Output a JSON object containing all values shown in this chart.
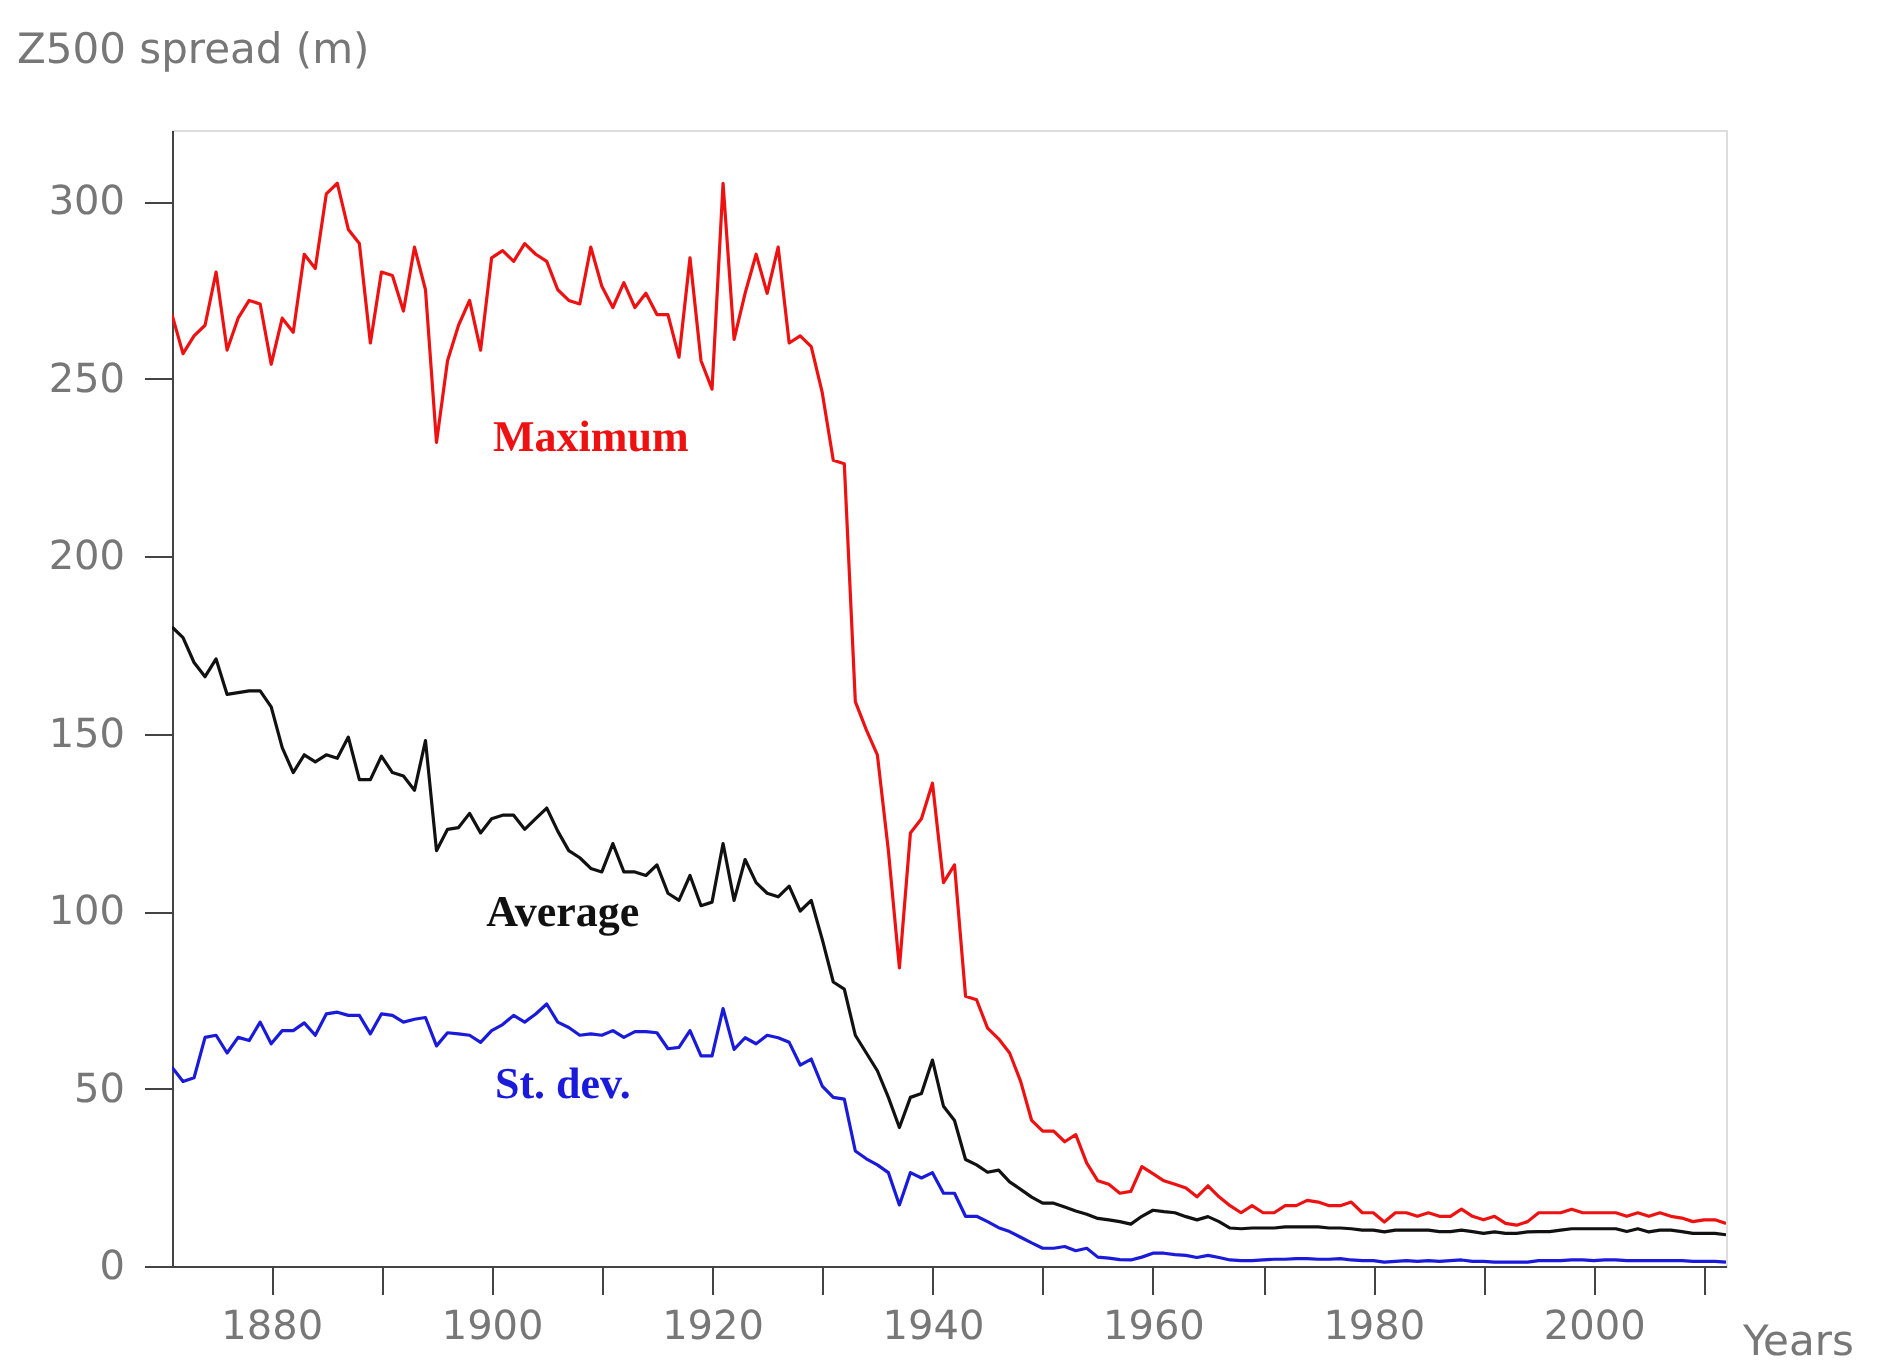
{
  "chart_data": {
    "type": "line",
    "ylabel": "Z500 spread (m)",
    "xlabel": "Years",
    "x": [
      1871,
      1872,
      1873,
      1874,
      1875,
      1876,
      1877,
      1878,
      1879,
      1880,
      1881,
      1882,
      1883,
      1884,
      1885,
      1886,
      1887,
      1888,
      1889,
      1890,
      1891,
      1892,
      1893,
      1894,
      1895,
      1896,
      1897,
      1898,
      1899,
      1900,
      1901,
      1902,
      1903,
      1904,
      1905,
      1906,
      1907,
      1908,
      1909,
      1910,
      1911,
      1912,
      1913,
      1914,
      1915,
      1916,
      1917,
      1918,
      1919,
      1920,
      1921,
      1922,
      1923,
      1924,
      1925,
      1926,
      1927,
      1928,
      1929,
      1930,
      1931,
      1932,
      1933,
      1934,
      1935,
      1936,
      1937,
      1938,
      1939,
      1940,
      1941,
      1942,
      1943,
      1944,
      1945,
      1946,
      1947,
      1948,
      1949,
      1950,
      1951,
      1952,
      1953,
      1954,
      1955,
      1956,
      1957,
      1958,
      1959,
      1960,
      1961,
      1962,
      1963,
      1964,
      1965,
      1966,
      1967,
      1968,
      1969,
      1970,
      1971,
      1972,
      1973,
      1974,
      1975,
      1976,
      1977,
      1978,
      1979,
      1980,
      1981,
      1982,
      1983,
      1984,
      1985,
      1986,
      1987,
      1988,
      1989,
      1990,
      1991,
      1992,
      1993,
      1994,
      1995,
      1996,
      1997,
      1998,
      1999,
      2000,
      2001,
      2002,
      2003,
      2004,
      2005,
      2006,
      2007,
      2008,
      2009,
      2010,
      2011,
      2012
    ],
    "series": [
      {
        "name": "Maximum",
        "color": "#ee1111",
        "values": [
          268,
          257,
          262,
          265,
          280,
          258,
          267,
          272,
          271,
          254,
          267,
          263,
          285,
          281,
          302,
          305,
          292,
          288,
          260,
          280,
          279,
          269,
          287,
          275,
          232,
          255,
          265,
          272,
          258,
          284,
          286,
          283,
          288,
          285,
          283,
          275,
          272,
          271,
          287,
          276,
          270,
          277,
          270,
          274,
          268,
          268,
          256,
          284,
          255,
          247,
          305,
          261,
          274,
          285,
          274,
          287,
          260,
          262,
          259,
          246,
          227,
          226,
          159,
          151,
          144,
          117,
          84,
          122,
          126,
          136,
          108,
          113,
          76,
          75,
          67,
          64,
          60,
          52,
          41,
          38,
          38,
          35,
          37,
          29,
          24,
          23,
          20.5,
          21,
          28,
          26,
          24,
          23,
          22,
          19.5,
          22.6,
          19.5,
          17,
          15,
          17,
          15,
          15,
          17,
          17,
          18.5,
          18,
          17,
          17,
          18,
          15,
          15,
          12.4,
          15,
          15,
          14,
          15,
          14,
          14,
          16,
          14,
          13,
          14,
          12,
          11.5,
          12.5,
          15,
          15,
          15,
          16,
          15,
          15,
          15,
          15,
          14,
          15,
          14,
          15,
          14,
          13.5,
          12.5,
          13,
          13,
          12
        ]
      },
      {
        "name": "Average",
        "color": "#111111",
        "values": [
          180,
          177,
          170,
          166,
          171,
          161,
          161.5,
          162,
          162,
          157.5,
          146,
          139,
          144,
          142,
          144,
          143,
          149,
          137,
          137,
          143.6,
          139,
          138,
          134,
          148,
          117,
          123,
          123.5,
          127.5,
          122,
          126,
          127,
          127,
          123,
          126,
          129,
          122.5,
          117,
          115,
          112,
          111,
          119,
          111,
          111,
          110,
          113,
          105,
          103,
          110,
          101.5,
          102.5,
          119,
          103,
          114.5,
          108,
          105,
          104,
          107,
          100,
          103,
          92,
          80,
          78,
          65,
          60,
          55,
          47.5,
          39,
          47.5,
          48.6,
          58,
          45,
          41,
          30,
          28.5,
          26.4,
          27,
          23.7,
          21.6,
          19.4,
          17.7,
          17.7,
          16.6,
          15.5,
          14.6,
          13.4,
          13,
          12.5,
          11.8,
          14,
          15.7,
          15.3,
          15,
          13.9,
          13,
          13.9,
          12.5,
          10.7,
          10.5,
          10.7,
          10.7,
          10.7,
          11,
          11,
          11,
          11,
          10.7,
          10.7,
          10.5,
          10.1,
          10.1,
          9.6,
          10.1,
          10.1,
          10.1,
          10.1,
          9.7,
          9.7,
          10.1,
          9.7,
          9.2,
          9.6,
          9.2,
          9.2,
          9.6,
          9.7,
          9.7,
          10.1,
          10.5,
          10.5,
          10.5,
          10.5,
          10.5,
          9.7,
          10.5,
          9.6,
          10.1,
          10.1,
          9.7,
          9.2,
          9.2,
          9.2,
          8.8
        ]
      },
      {
        "name": "St. dev.",
        "color": "#1a1adb",
        "values": [
          56,
          52,
          53,
          64.4,
          65,
          60,
          64.4,
          63.5,
          68.7,
          62.6,
          66.3,
          66.3,
          68.5,
          65,
          71,
          71.5,
          70.6,
          70.6,
          65.4,
          71,
          70.6,
          68.7,
          69.5,
          70,
          62,
          65.7,
          65.4,
          65,
          63,
          66.3,
          68,
          70.6,
          68.7,
          71,
          73.8,
          68.7,
          67.2,
          65,
          65.4,
          65,
          66.3,
          64.4,
          66,
          66,
          65.7,
          61.2,
          61.6,
          66.3,
          59.2,
          59.2,
          72.5,
          61,
          64.3,
          62.6,
          65,
          64.3,
          63,
          56.6,
          58.3,
          50.7,
          47.5,
          47,
          32.4,
          30.2,
          28.5,
          26.3,
          17.2,
          26.3,
          24.8,
          26.3,
          20.5,
          20.5,
          14,
          14,
          12.5,
          10.8,
          9.7,
          8.1,
          6.5,
          5,
          5,
          5.5,
          4.3,
          5,
          2.5,
          2.2,
          1.8,
          1.7,
          2.5,
          3.6,
          3.6,
          3.2,
          3,
          2.4,
          3,
          2.4,
          1.7,
          1.5,
          1.5,
          1.7,
          1.9,
          1.9,
          2.1,
          2.1,
          1.9,
          1.9,
          2.1,
          1.7,
          1.5,
          1.5,
          1.1,
          1.3,
          1.5,
          1.3,
          1.5,
          1.3,
          1.5,
          1.7,
          1.3,
          1.3,
          1.1,
          1.1,
          1.1,
          1.1,
          1.5,
          1.5,
          1.5,
          1.7,
          1.7,
          1.5,
          1.7,
          1.7,
          1.5,
          1.5,
          1.5,
          1.5,
          1.5,
          1.5,
          1.3,
          1.3,
          1.3,
          1.1
        ]
      }
    ],
    "xlim": [
      1871,
      2012
    ],
    "ylim": [
      0,
      320
    ],
    "xticks": [
      1880,
      {
        "value": 1890,
        "label": null
      },
      1900,
      {
        "value": 1910,
        "label": null
      },
      1920,
      {
        "value": 1930,
        "label": null
      },
      1940,
      {
        "value": 1950,
        "label": null
      },
      1960,
      {
        "value": 1970,
        "label": null
      },
      1980,
      {
        "value": 1990,
        "label": null
      },
      2000,
      {
        "value": 2010,
        "label": null
      }
    ],
    "yticks": [
      0,
      50,
      100,
      150,
      200,
      250,
      300
    ],
    "grid": false
  }
}
